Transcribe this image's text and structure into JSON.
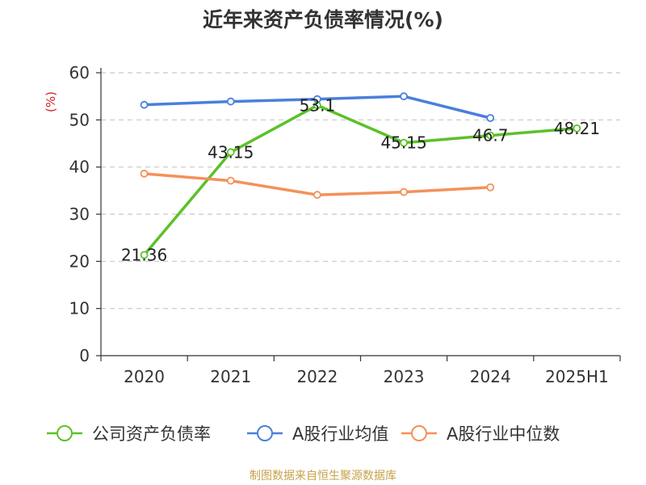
{
  "chart_data": {
    "type": "line",
    "title": "近年来资产负债率情况(%)",
    "ylabel": "(%)",
    "xlabel": "",
    "categories": [
      "2020",
      "2021",
      "2022",
      "2023",
      "2024",
      "2025H1"
    ],
    "ylim": [
      0,
      60
    ],
    "yticks": [
      0,
      10,
      20,
      30,
      40,
      50,
      60
    ],
    "grid": "horizontal dashed",
    "legend_position": "bottom",
    "series": [
      {
        "name": "公司资产负债率",
        "color": "#5cc12a",
        "values": [
          21.36,
          43.15,
          53.1,
          45.15,
          46.7,
          48.21
        ],
        "labels": [
          "21.36",
          "43.15",
          "53.1",
          "45.15",
          "46.7",
          "48.21"
        ]
      },
      {
        "name": "A股行业均值",
        "color": "#4a7fdc",
        "values": [
          53.2,
          53.9,
          54.4,
          55.0,
          50.4,
          null
        ]
      },
      {
        "name": "A股行业中位数",
        "color": "#f4915a",
        "values": [
          38.6,
          37.1,
          34.1,
          34.7,
          35.7,
          null
        ]
      }
    ]
  },
  "footer": {
    "source": "制图数据来自恒生聚源数据库"
  }
}
